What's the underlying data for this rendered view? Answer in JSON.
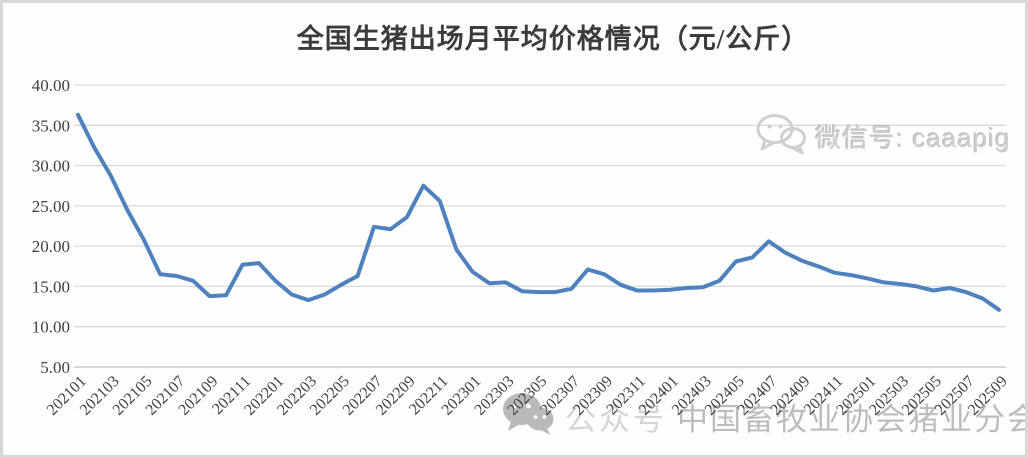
{
  "page": {
    "background": "#FFFFFF",
    "border_color": "#D7D7D7"
  },
  "title": "全国生猪出场月平均价格情况（元/公斤）",
  "watermark_top": {
    "icon": "wechat-bubbles",
    "text": "微信号: caaapig"
  },
  "watermark_bottom": {
    "icon": "wechat-bubbles",
    "label": "公众号",
    "text": "中国畜牧业协会猪业分会"
  },
  "chart_data": {
    "type": "line",
    "title": "全国生猪出场月平均价格情况（元/公斤）",
    "x": [
      "202101",
      "202102",
      "202103",
      "202104",
      "202105",
      "202106",
      "202107",
      "202108",
      "202109",
      "202110",
      "202111",
      "202112",
      "202201",
      "202202",
      "202203",
      "202204",
      "202205",
      "202206",
      "202207",
      "202208",
      "202209",
      "202210",
      "202211",
      "202212",
      "202301",
      "202302",
      "202303",
      "202304",
      "202305",
      "202306",
      "202307",
      "202308",
      "202309",
      "202310",
      "202311",
      "202312",
      "202401",
      "202402",
      "202403",
      "202404",
      "202405",
      "202406",
      "202407",
      "202408",
      "202409",
      "202410",
      "202411",
      "202412",
      "202501",
      "202502",
      "202503",
      "202504",
      "202505",
      "202506",
      "202507",
      "202508",
      "202509"
    ],
    "values": [
      36.3,
      32.2,
      28.7,
      24.5,
      20.8,
      16.5,
      16.3,
      15.7,
      13.8,
      13.9,
      17.7,
      17.9,
      15.7,
      14.0,
      13.3,
      14.0,
      15.2,
      16.3,
      22.4,
      22.1,
      23.6,
      27.5,
      25.6,
      19.6,
      16.8,
      15.4,
      15.5,
      14.4,
      14.3,
      14.3,
      14.7,
      17.1,
      16.5,
      15.2,
      14.5,
      14.5,
      14.6,
      14.8,
      14.9,
      15.7,
      18.1,
      18.6,
      20.6,
      19.2,
      18.2,
      17.5,
      16.7,
      16.4,
      16.0,
      15.5,
      15.3,
      15.0,
      14.5,
      14.8,
      14.3,
      13.5,
      12.1
    ],
    "x_tick_labels": [
      "202101",
      "202103",
      "202105",
      "202107",
      "202109",
      "202111",
      "202201",
      "202203",
      "202205",
      "202207",
      "202209",
      "202211",
      "202301",
      "202303",
      "202305",
      "202307",
      "202309",
      "202311",
      "202401",
      "202403",
      "202405",
      "202407",
      "202409",
      "202411",
      "202501",
      "202503",
      "202505",
      "202507",
      "202509"
    ],
    "y_ticks": [
      40,
      35,
      30,
      25,
      20,
      15,
      10,
      5
    ],
    "y_tick_labels": [
      "40.00",
      "35.00",
      "30.00",
      "25.00",
      "20.00",
      "15.00",
      "10.00",
      "5.00"
    ],
    "ylim": [
      5,
      40
    ],
    "xlabel": "",
    "ylabel": "",
    "legend": "none",
    "grid": "horizontal",
    "line_color": "#4E81BD",
    "gridline_color": "#D9D9D9",
    "axis_line_color": "#BFBFBF",
    "tick_label_color": "#404040"
  }
}
